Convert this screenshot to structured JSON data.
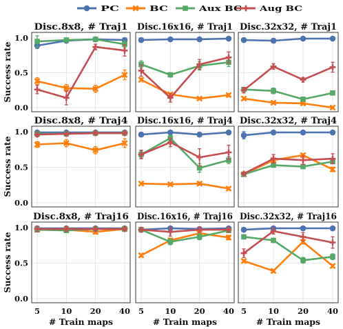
{
  "chart_data": {
    "type": "line",
    "layout": "3x3 grid",
    "x": [
      5,
      10,
      20,
      40
    ],
    "xlabel": "# Train maps",
    "ylabel": "Success rate",
    "ylim": [
      0,
      1
    ],
    "xticks": [
      "5",
      "10",
      "20",
      "40"
    ],
    "yticks": [
      "0.0",
      "0.5",
      "1.0"
    ],
    "grid": true,
    "legend": {
      "placement": "top-center",
      "entries": [
        {
          "name": "PC",
          "color": "#4c72b0",
          "marker": "circle"
        },
        {
          "name": "BC",
          "color": "#ff7f0e",
          "marker": "x"
        },
        {
          "name": "Aux BC",
          "color": "#55a868",
          "marker": "square"
        },
        {
          "name": "Aug BC",
          "color": "#c44e52",
          "marker": "plus"
        }
      ]
    },
    "panels": [
      {
        "title": "Disc.8x8, # Traj1",
        "series": [
          {
            "name": "PC",
            "values": [
              0.89,
              0.96,
              0.98,
              0.97
            ],
            "err": [
              0.04,
              0.02,
              0.02,
              0.03
            ]
          },
          {
            "name": "BC",
            "values": [
              0.38,
              0.28,
              0.27,
              0.47
            ],
            "err": [
              0.05,
              0.05,
              0.05,
              0.07
            ]
          },
          {
            "name": "Aux BC",
            "values": [
              0.95,
              0.97,
              0.98,
              0.91
            ],
            "err": [
              0.08,
              0.03,
              0.02,
              0.05
            ]
          },
          {
            "name": "Aug BC",
            "values": [
              0.26,
              0.14,
              0.87,
              0.82
            ],
            "err": [
              0.06,
              0.1,
              0.04,
              0.08
            ]
          }
        ]
      },
      {
        "title": "Disc.16x16, # Traj1",
        "series": [
          {
            "name": "PC",
            "values": [
              0.97,
              0.98,
              0.98,
              0.99
            ],
            "err": [
              0.02,
              0.02,
              0.02,
              0.01
            ]
          },
          {
            "name": "BC",
            "values": [
              0.4,
              0.19,
              0.13,
              0.18
            ],
            "err": [
              0.02,
              0.02,
              0.01,
              0.02
            ]
          },
          {
            "name": "Aux BC",
            "values": [
              0.62,
              0.47,
              0.6,
              0.65
            ],
            "err": [
              0.05,
              0.03,
              0.06,
              0.06
            ]
          },
          {
            "name": "Aug BC",
            "values": [
              0.53,
              0.14,
              0.62,
              0.72
            ],
            "err": [
              0.08,
              0.06,
              0.07,
              0.08
            ]
          }
        ]
      },
      {
        "title": "Disc.32x32, # Traj1",
        "series": [
          {
            "name": "PC",
            "values": [
              0.97,
              0.96,
              0.99,
              0.99
            ],
            "err": [
              0.02,
              0.03,
              0.01,
              0.01
            ]
          },
          {
            "name": "BC",
            "values": [
              0.13,
              0.07,
              0.06,
              0.0
            ],
            "err": [
              0.02,
              0.01,
              0.01,
              0.01
            ]
          },
          {
            "name": "Aux BC",
            "values": [
              0.26,
              0.24,
              0.12,
              0.21
            ],
            "err": [
              0.03,
              0.04,
              0.02,
              0.03
            ]
          },
          {
            "name": "Aug BC",
            "values": [
              0.25,
              0.59,
              0.4,
              0.58
            ],
            "err": [
              0.04,
              0.04,
              0.03,
              0.07
            ]
          }
        ]
      },
      {
        "title": "Disc.8x8, # Traj4",
        "series": [
          {
            "name": "PC",
            "values": [
              0.99,
              0.99,
              0.99,
              0.99
            ],
            "err": [
              0.01,
              0.01,
              0.01,
              0.01
            ]
          },
          {
            "name": "BC",
            "values": [
              0.82,
              0.84,
              0.74,
              0.84
            ],
            "err": [
              0.04,
              0.05,
              0.05,
              0.06
            ]
          },
          {
            "name": "Aux BC",
            "values": [
              0.97,
              0.97,
              0.98,
              0.98
            ],
            "err": [
              0.02,
              0.02,
              0.02,
              0.02
            ]
          },
          {
            "name": "Aug BC",
            "values": [
              0.96,
              0.97,
              0.98,
              0.98
            ],
            "err": [
              0.03,
              0.02,
              0.02,
              0.02
            ]
          }
        ]
      },
      {
        "title": "Disc.16x16, # Traj4",
        "series": [
          {
            "name": "PC",
            "values": [
              0.96,
              0.99,
              0.96,
              0.99
            ],
            "err": [
              0.03,
              0.01,
              0.03,
              0.01
            ]
          },
          {
            "name": "BC",
            "values": [
              0.27,
              0.26,
              0.27,
              0.2
            ],
            "err": [
              0.01,
              0.01,
              0.02,
              0.02
            ]
          },
          {
            "name": "Aux BC",
            "values": [
              0.68,
              0.91,
              0.49,
              0.6
            ],
            "err": [
              0.05,
              0.04,
              0.06,
              0.05
            ]
          },
          {
            "name": "Aug BC",
            "values": [
              0.68,
              0.85,
              0.64,
              0.71
            ],
            "err": [
              0.06,
              0.06,
              0.12,
              0.1
            ]
          }
        ]
      },
      {
        "title": "Disc.32x32, # Traj4",
        "series": [
          {
            "name": "PC",
            "values": [
              0.95,
              0.99,
              0.99,
              0.99
            ],
            "err": [
              0.05,
              0.01,
              0.01,
              0.01
            ]
          },
          {
            "name": "BC",
            "values": [
              0.4,
              0.6,
              0.67,
              0.47
            ],
            "err": [
              0.02,
              0.03,
              0.02,
              0.03
            ]
          },
          {
            "name": "Aux BC",
            "values": [
              0.4,
              0.53,
              0.51,
              0.58
            ],
            "err": [
              0.02,
              0.03,
              0.03,
              0.03
            ]
          },
          {
            "name": "Aug BC",
            "values": [
              0.41,
              0.62,
              0.6,
              0.62
            ],
            "err": [
              0.02,
              0.06,
              0.06,
              0.07
            ]
          }
        ]
      },
      {
        "title": "Disc.8x8, # Traj16",
        "series": [
          {
            "name": "PC",
            "values": [
              0.99,
              0.99,
              0.99,
              0.99
            ],
            "err": [
              0.01,
              0.01,
              0.01,
              0.01
            ]
          },
          {
            "name": "BC",
            "values": [
              0.97,
              0.97,
              0.94,
              0.98
            ],
            "err": [
              0.02,
              0.02,
              0.03,
              0.02
            ]
          },
          {
            "name": "Aux BC",
            "values": [
              0.97,
              0.96,
              0.98,
              0.98
            ],
            "err": [
              0.03,
              0.03,
              0.02,
              0.02
            ]
          },
          {
            "name": "Aug BC",
            "values": [
              0.98,
              0.98,
              0.98,
              0.98
            ],
            "err": [
              0.04,
              0.03,
              0.02,
              0.02
            ]
          }
        ]
      },
      {
        "title": "Disc.16x16, # Traj16",
        "series": [
          {
            "name": "PC",
            "values": [
              0.97,
              0.99,
              0.98,
              0.99
            ],
            "err": [
              0.02,
              0.01,
              0.02,
              0.01
            ]
          },
          {
            "name": "BC",
            "values": [
              0.61,
              0.82,
              0.92,
              0.86
            ],
            "err": [
              0.02,
              0.03,
              0.03,
              0.03
            ]
          },
          {
            "name": "Aux BC",
            "values": [
              0.97,
              0.8,
              0.87,
              0.96
            ],
            "err": [
              0.02,
              0.04,
              0.04,
              0.02
            ]
          },
          {
            "name": "Aug BC",
            "values": [
              0.97,
              0.94,
              0.97,
              0.97
            ],
            "err": [
              0.03,
              0.06,
              0.04,
              0.03
            ]
          }
        ]
      },
      {
        "title": "Disc.32x32, # Traj16",
        "series": [
          {
            "name": "PC",
            "values": [
              0.97,
              0.99,
              0.99,
              0.99
            ],
            "err": [
              0.02,
              0.01,
              0.01,
              0.01
            ]
          },
          {
            "name": "BC",
            "values": [
              0.53,
              0.39,
              0.8,
              0.46
            ],
            "err": [
              0.02,
              0.02,
              0.03,
              0.02
            ]
          },
          {
            "name": "Aux BC",
            "values": [
              0.87,
              0.82,
              0.54,
              0.59
            ],
            "err": [
              0.03,
              0.03,
              0.04,
              0.04
            ]
          },
          {
            "name": "Aug BC",
            "values": [
              0.64,
              0.95,
              0.87,
              0.79
            ],
            "err": [
              0.06,
              0.04,
              0.06,
              0.08
            ]
          }
        ]
      }
    ]
  }
}
